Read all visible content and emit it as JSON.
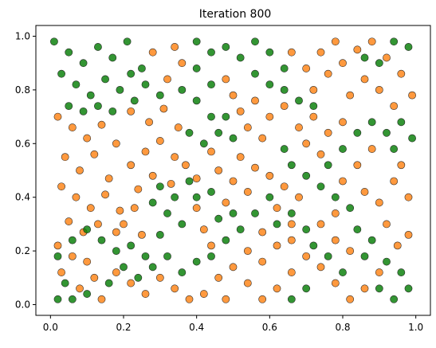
{
  "chart_data": {
    "type": "scatter",
    "title": "Iteration 800",
    "xlabel": "",
    "ylabel": "",
    "xlim": [
      -0.04,
      1.04
    ],
    "ylim": [
      -0.04,
      1.04
    ],
    "xticks": [
      0.0,
      0.2,
      0.4,
      0.6,
      0.8,
      1.0
    ],
    "xtick_labels": [
      "0.0",
      "0.2",
      "0.4",
      "0.6",
      "0.8",
      "1.0"
    ],
    "yticks": [
      0.0,
      0.2,
      0.4,
      0.6,
      0.8,
      1.0
    ],
    "ytick_labels": [
      "0.0",
      "0.2",
      "0.4",
      "0.6",
      "0.8",
      "1.0"
    ],
    "grid": false,
    "legend": "none",
    "marker": "circle",
    "marker_alpha": 0.8,
    "edge_color": "#1a1a1a",
    "series": [
      {
        "color": "#ff7f0e",
        "points": [
          [
            0.02,
            0.7
          ],
          [
            0.06,
            0.66
          ],
          [
            0.1,
            0.62
          ],
          [
            0.14,
            0.67
          ],
          [
            0.18,
            0.6
          ],
          [
            0.04,
            0.55
          ],
          [
            0.08,
            0.5
          ],
          [
            0.12,
            0.56
          ],
          [
            0.16,
            0.47
          ],
          [
            0.03,
            0.44
          ],
          [
            0.07,
            0.4
          ],
          [
            0.11,
            0.36
          ],
          [
            0.15,
            0.41
          ],
          [
            0.19,
            0.35
          ],
          [
            0.05,
            0.31
          ],
          [
            0.09,
            0.27
          ],
          [
            0.13,
            0.3
          ],
          [
            0.02,
            0.22
          ],
          [
            0.06,
            0.18
          ],
          [
            0.1,
            0.16
          ],
          [
            0.03,
            0.12
          ],
          [
            0.22,
            0.52
          ],
          [
            0.26,
            0.57
          ],
          [
            0.3,
            0.61
          ],
          [
            0.34,
            0.55
          ],
          [
            0.28,
            0.48
          ],
          [
            0.24,
            0.43
          ],
          [
            0.33,
            0.45
          ],
          [
            0.37,
            0.52
          ],
          [
            0.4,
            0.47
          ],
          [
            0.2,
            0.3
          ],
          [
            0.25,
            0.26
          ],
          [
            0.23,
            0.36
          ],
          [
            0.18,
            0.27
          ],
          [
            0.27,
            0.68
          ],
          [
            0.31,
            0.73
          ],
          [
            0.35,
            0.66
          ],
          [
            0.22,
            0.72
          ],
          [
            0.46,
            0.5
          ],
          [
            0.5,
            0.46
          ],
          [
            0.54,
            0.42
          ],
          [
            0.48,
            0.38
          ],
          [
            0.52,
            0.55
          ],
          [
            0.56,
            0.51
          ],
          [
            0.44,
            0.57
          ],
          [
            0.6,
            0.48
          ],
          [
            0.64,
            0.44
          ],
          [
            0.68,
            0.4
          ],
          [
            0.62,
            0.36
          ],
          [
            0.66,
            0.3
          ],
          [
            0.58,
            0.27
          ],
          [
            0.52,
            0.72
          ],
          [
            0.56,
            0.76
          ],
          [
            0.6,
            0.7
          ],
          [
            0.54,
            0.66
          ],
          [
            0.58,
            0.62
          ],
          [
            0.64,
            0.74
          ],
          [
            0.68,
            0.66
          ],
          [
            0.72,
            0.7
          ],
          [
            0.7,
            0.6
          ],
          [
            0.74,
            0.56
          ],
          [
            0.76,
            0.64
          ],
          [
            0.8,
            0.68
          ],
          [
            0.72,
            0.8
          ],
          [
            0.76,
            0.86
          ],
          [
            0.8,
            0.9
          ],
          [
            0.84,
            0.95
          ],
          [
            0.88,
            0.98
          ],
          [
            0.92,
            0.92
          ],
          [
            0.86,
            0.84
          ],
          [
            0.82,
            0.78
          ],
          [
            0.9,
            0.8
          ],
          [
            0.96,
            0.86
          ],
          [
            0.99,
            0.78
          ],
          [
            0.94,
            0.74
          ],
          [
            0.88,
            0.58
          ],
          [
            0.84,
            0.52
          ],
          [
            0.8,
            0.46
          ],
          [
            0.86,
            0.42
          ],
          [
            0.9,
            0.38
          ],
          [
            0.94,
            0.46
          ],
          [
            0.98,
            0.4
          ],
          [
            0.96,
            0.52
          ],
          [
            0.92,
            0.3
          ],
          [
            0.98,
            0.26
          ],
          [
            0.95,
            0.22
          ],
          [
            0.9,
            0.12
          ],
          [
            0.86,
            0.06
          ],
          [
            0.82,
            0.02
          ],
          [
            0.78,
            0.08
          ],
          [
            0.74,
            0.14
          ],
          [
            0.7,
            0.18
          ],
          [
            0.66,
            0.12
          ],
          [
            0.62,
            0.06
          ],
          [
            0.58,
            0.02
          ],
          [
            0.54,
            0.08
          ],
          [
            0.5,
            0.14
          ],
          [
            0.46,
            0.1
          ],
          [
            0.42,
            0.04
          ],
          [
            0.48,
            0.02
          ],
          [
            0.38,
            0.02
          ],
          [
            0.34,
            0.06
          ],
          [
            0.3,
            0.1
          ],
          [
            0.26,
            0.04
          ],
          [
            0.22,
            0.08
          ],
          [
            0.18,
            0.12
          ],
          [
            0.14,
            0.02
          ],
          [
            0.54,
            0.2
          ],
          [
            0.58,
            0.16
          ],
          [
            0.62,
            0.22
          ],
          [
            0.66,
            0.24
          ],
          [
            0.78,
            0.24
          ],
          [
            0.82,
            0.2
          ],
          [
            0.78,
            0.34
          ],
          [
            0.74,
            0.3
          ],
          [
            0.7,
            0.88
          ],
          [
            0.74,
            0.94
          ],
          [
            0.78,
            0.98
          ],
          [
            0.66,
            0.94
          ],
          [
            0.48,
            0.84
          ],
          [
            0.5,
            0.78
          ],
          [
            0.32,
            0.84
          ],
          [
            0.36,
            0.9
          ],
          [
            0.34,
            0.96
          ],
          [
            0.28,
            0.94
          ],
          [
            0.42,
            0.28
          ],
          [
            0.44,
            0.22
          ],
          [
            0.4,
            0.36
          ],
          [
            0.08,
            0.06
          ],
          [
            0.12,
            0.1
          ]
        ]
      },
      {
        "color": "#007b00",
        "points": [
          [
            0.01,
            0.98
          ],
          [
            0.05,
            0.94
          ],
          [
            0.09,
            0.9
          ],
          [
            0.13,
            0.96
          ],
          [
            0.17,
            0.92
          ],
          [
            0.21,
            0.98
          ],
          [
            0.25,
            0.88
          ],
          [
            0.03,
            0.86
          ],
          [
            0.07,
            0.82
          ],
          [
            0.11,
            0.78
          ],
          [
            0.15,
            0.84
          ],
          [
            0.19,
            0.8
          ],
          [
            0.23,
            0.76
          ],
          [
            0.05,
            0.74
          ],
          [
            0.09,
            0.72
          ],
          [
            0.13,
            0.74
          ],
          [
            0.17,
            0.72
          ],
          [
            0.4,
            0.98
          ],
          [
            0.44,
            0.94
          ],
          [
            0.48,
            0.96
          ],
          [
            0.52,
            0.92
          ],
          [
            0.56,
            0.98
          ],
          [
            0.6,
            0.94
          ],
          [
            0.64,
            0.88
          ],
          [
            0.4,
            0.88
          ],
          [
            0.44,
            0.82
          ],
          [
            0.4,
            0.76
          ],
          [
            0.44,
            0.7
          ],
          [
            0.38,
            0.64
          ],
          [
            0.42,
            0.6
          ],
          [
            0.46,
            0.64
          ],
          [
            0.5,
            0.62
          ],
          [
            0.48,
            0.7
          ],
          [
            0.3,
            0.44
          ],
          [
            0.34,
            0.4
          ],
          [
            0.28,
            0.38
          ],
          [
            0.32,
            0.34
          ],
          [
            0.36,
            0.3
          ],
          [
            0.3,
            0.26
          ],
          [
            0.22,
            0.22
          ],
          [
            0.26,
            0.18
          ],
          [
            0.18,
            0.2
          ],
          [
            0.14,
            0.24
          ],
          [
            0.1,
            0.28
          ],
          [
            0.06,
            0.24
          ],
          [
            0.02,
            0.18
          ],
          [
            0.04,
            0.08
          ],
          [
            0.02,
            0.02
          ],
          [
            0.06,
            0.02
          ],
          [
            0.1,
            0.04
          ],
          [
            0.16,
            0.08
          ],
          [
            0.2,
            0.14
          ],
          [
            0.24,
            0.1
          ],
          [
            0.28,
            0.14
          ],
          [
            0.32,
            0.18
          ],
          [
            0.36,
            0.12
          ],
          [
            0.4,
            0.16
          ],
          [
            0.44,
            0.18
          ],
          [
            0.48,
            0.24
          ],
          [
            0.52,
            0.28
          ],
          [
            0.56,
            0.34
          ],
          [
            0.6,
            0.4
          ],
          [
            0.64,
            0.58
          ],
          [
            0.66,
            0.52
          ],
          [
            0.7,
            0.48
          ],
          [
            0.74,
            0.44
          ],
          [
            0.78,
            0.4
          ],
          [
            0.82,
            0.36
          ],
          [
            0.84,
            0.28
          ],
          [
            0.88,
            0.24
          ],
          [
            0.86,
            0.18
          ],
          [
            0.92,
            0.16
          ],
          [
            0.96,
            0.12
          ],
          [
            0.98,
            0.06
          ],
          [
            0.94,
            0.02
          ],
          [
            0.9,
            0.06
          ],
          [
            0.76,
            0.52
          ],
          [
            0.8,
            0.58
          ],
          [
            0.84,
            0.64
          ],
          [
            0.88,
            0.68
          ],
          [
            0.92,
            0.64
          ],
          [
            0.96,
            0.68
          ],
          [
            0.99,
            0.62
          ],
          [
            0.94,
            0.58
          ],
          [
            0.98,
            0.96
          ],
          [
            0.94,
            0.98
          ],
          [
            0.9,
            0.9
          ],
          [
            0.86,
            0.92
          ],
          [
            0.68,
            0.76
          ],
          [
            0.64,
            0.8
          ],
          [
            0.6,
            0.82
          ],
          [
            0.56,
            0.86
          ],
          [
            0.72,
            0.74
          ],
          [
            0.36,
            0.8
          ],
          [
            0.3,
            0.78
          ],
          [
            0.26,
            0.82
          ],
          [
            0.22,
            0.86
          ],
          [
            0.62,
            0.3
          ],
          [
            0.66,
            0.34
          ],
          [
            0.7,
            0.28
          ],
          [
            0.72,
            0.22
          ],
          [
            0.76,
            0.18
          ],
          [
            0.8,
            0.12
          ],
          [
            0.7,
            0.06
          ],
          [
            0.66,
            0.02
          ],
          [
            0.44,
            0.42
          ],
          [
            0.4,
            0.4
          ],
          [
            0.38,
            0.46
          ],
          [
            0.46,
            0.32
          ],
          [
            0.5,
            0.34
          ]
        ]
      }
    ]
  }
}
